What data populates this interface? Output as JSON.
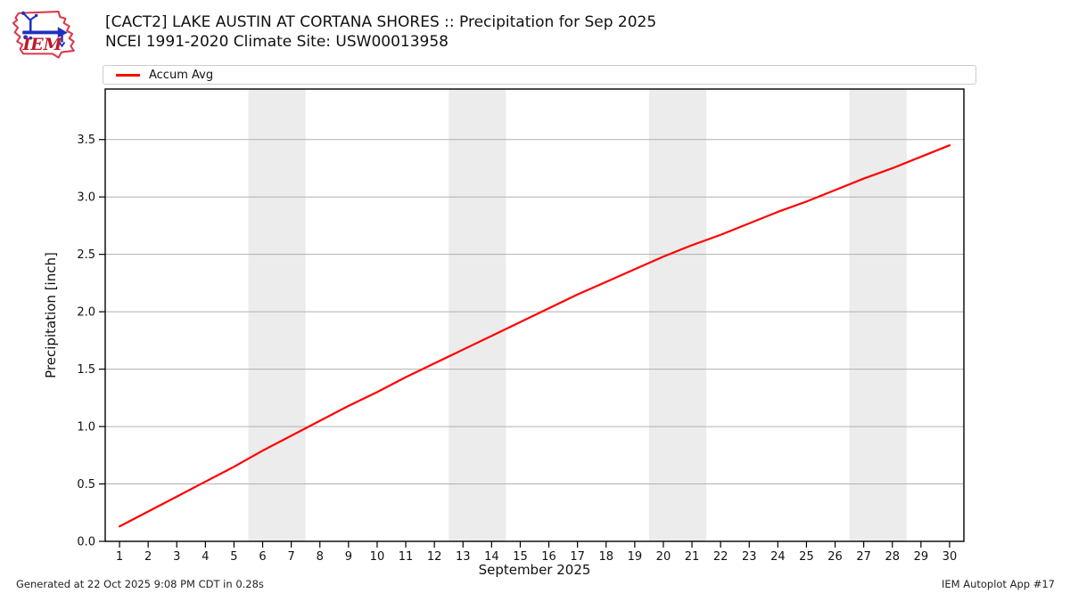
{
  "header": {
    "logo_text": "IEM",
    "title_line1": "[CACT2] LAKE AUSTIN AT CORTANA SHORES :: Precipitation for Sep 2025",
    "title_line2": "NCEI 1991-2020 Climate Site: USW00013958"
  },
  "legend": {
    "items": [
      {
        "label": "Accum Avg",
        "color": "#ff0000"
      }
    ]
  },
  "footer": {
    "generated": "Generated at 22 Oct 2025 9:08 PM CDT in 0.28s",
    "app": "IEM Autoplot App #17"
  },
  "colors": {
    "line": "#ff0000",
    "weekend_band": "#ececec",
    "grid": "#b0b0b0",
    "frame": "#000000",
    "text": "#111111",
    "logo_red": "#d83a4c",
    "logo_blue": "#2230c0"
  },
  "chart_data": {
    "type": "line",
    "title": "[CACT2] LAKE AUSTIN AT CORTANA SHORES :: Precipitation for Sep 2025",
    "subtitle": "NCEI 1991-2020 Climate Site: USW00013958",
    "xlabel": "September 2025",
    "ylabel": "Precipitation [inch]",
    "legend_position": "top-left",
    "grid": "horizontal",
    "xlim": [
      0.5,
      30.5
    ],
    "ylim": [
      0,
      3.94
    ],
    "yticks": [
      0,
      0.5,
      1,
      1.5,
      2,
      2.5,
      3,
      3.5
    ],
    "ytick_labels": [
      "0.0",
      "0.5",
      "1.0",
      "1.5",
      "2.0",
      "2.5",
      "3.0",
      "3.5"
    ],
    "x": [
      1,
      2,
      3,
      4,
      5,
      6,
      7,
      8,
      9,
      10,
      11,
      12,
      13,
      14,
      15,
      16,
      17,
      18,
      19,
      20,
      21,
      22,
      23,
      24,
      25,
      26,
      27,
      28,
      29,
      30
    ],
    "series": [
      {
        "name": "Accum Avg",
        "color": "#ff0000",
        "values": [
          0.13,
          0.26,
          0.39,
          0.52,
          0.65,
          0.79,
          0.92,
          1.05,
          1.18,
          1.3,
          1.43,
          1.55,
          1.67,
          1.79,
          1.91,
          2.03,
          2.15,
          2.26,
          2.37,
          2.48,
          2.58,
          2.67,
          2.77,
          2.87,
          2.96,
          3.06,
          3.16,
          3.25,
          3.35,
          3.45
        ]
      }
    ],
    "weekend_bands": [
      [
        5.5,
        7.5
      ],
      [
        12.5,
        14.5
      ],
      [
        19.5,
        21.5
      ],
      [
        26.5,
        28.5
      ]
    ]
  }
}
